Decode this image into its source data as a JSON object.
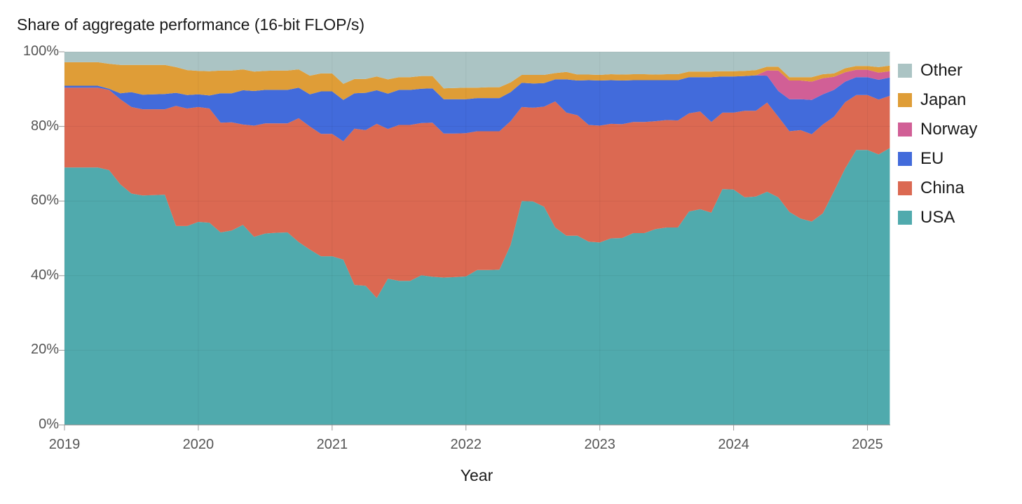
{
  "chart_data": {
    "type": "area",
    "stacked": true,
    "title": "Share of aggregate performance (16-bit FLOP/s)",
    "xlabel": "Year",
    "ylabel": "",
    "x_start": "2019-01",
    "x_frequency": "monthly",
    "xlim": [
      2019,
      2025.17
    ],
    "ylim": [
      0,
      100
    ],
    "y_ticks": [
      "0%",
      "20%",
      "40%",
      "60%",
      "80%",
      "100%"
    ],
    "x_ticks": [
      "2019",
      "2020",
      "2021",
      "2022",
      "2023",
      "2024",
      "2025"
    ],
    "grid": true,
    "legend_position": "right",
    "series": [
      {
        "name": "USA",
        "color": "#50aaad",
        "values": [
          69,
          69,
          69,
          69,
          68.3,
          64.5,
          62,
          61.5,
          61.6,
          61.7,
          53.3,
          53.3,
          54.4,
          54.2,
          51.6,
          52.1,
          53.6,
          50.4,
          51.3,
          51.5,
          51.6,
          49,
          47,
          45.2,
          45.2,
          44.3,
          37.5,
          37.3,
          34,
          39.2,
          38.6,
          38.6,
          40.1,
          39.7,
          39.5,
          39.6,
          39.8,
          41.5,
          41.5,
          41.6,
          48.2,
          60,
          59.9,
          58.5,
          52.9,
          50.7,
          50.7,
          49.1,
          48.9,
          50,
          50.1,
          51.4,
          51.4,
          52.5,
          52.9,
          52.9,
          57.2,
          57.8,
          56.9,
          63.2,
          63.1,
          61,
          61.2,
          62.5,
          61,
          57.1,
          55.3,
          54.5,
          56.7,
          62.6,
          68.7,
          73.7,
          73.7,
          72.5,
          74.2
        ]
      },
      {
        "name": "China",
        "color": "#db6952",
        "values": [
          21.4,
          21.4,
          21.4,
          21.4,
          21.5,
          22.8,
          23.2,
          23.1,
          23,
          22.9,
          32.2,
          31.5,
          30.8,
          30.6,
          29.4,
          29,
          26.9,
          29.8,
          29.5,
          29.3,
          29.2,
          33.2,
          33,
          32.8,
          32.8,
          31.7,
          41.9,
          41.7,
          46.7,
          40.1,
          41.8,
          41.8,
          40.8,
          41.3,
          38.6,
          38.5,
          38.4,
          37.2,
          37.2,
          37.1,
          33.2,
          25.2,
          25.1,
          26.8,
          33.8,
          33,
          32.3,
          31.3,
          31.3,
          30.7,
          30.5,
          29.8,
          29.8,
          28.9,
          28.8,
          28.7,
          26.3,
          26.2,
          24.3,
          20.5,
          20.6,
          23.2,
          23,
          23.9,
          21.6,
          21.6,
          23.7,
          23.4,
          23.8,
          20,
          17.8,
          14.7,
          14.7,
          14.7,
          14
        ]
      },
      {
        "name": "EU",
        "color": "#426bdb",
        "values": [
          0.5,
          0.5,
          0.5,
          0.5,
          0.3,
          1.6,
          4,
          3.9,
          4,
          4.1,
          3.5,
          3.6,
          3.4,
          3.5,
          7.9,
          7.8,
          9.2,
          9.3,
          9,
          9,
          9,
          8.2,
          8.6,
          11.4,
          11.4,
          11.1,
          9.5,
          10,
          9,
          9.5,
          9.4,
          9.4,
          9.2,
          9.2,
          9.2,
          9.2,
          9.1,
          8.9,
          8.9,
          8.9,
          7.8,
          6.5,
          6.5,
          6.3,
          5.9,
          8.9,
          9.3,
          12,
          12.1,
          11.7,
          11.7,
          11.2,
          11.2,
          11,
          10.7,
          10.8,
          9.7,
          9.2,
          12,
          9.7,
          9.7,
          9.3,
          9.5,
          7.2,
          6.9,
          8.6,
          8.3,
          9.2,
          8.1,
          7.2,
          5.5,
          4.8,
          4.8,
          5.3,
          4.9
        ]
      },
      {
        "name": "Norway",
        "color": "#d15f96",
        "values": [
          0,
          0,
          0,
          0,
          0,
          0,
          0,
          0,
          0,
          0,
          0,
          0,
          0,
          0,
          0,
          0,
          0,
          0,
          0,
          0,
          0,
          0,
          0,
          0,
          0,
          0,
          0,
          0,
          0,
          0,
          0,
          0,
          0,
          0,
          0,
          0,
          0,
          0,
          0,
          0,
          0,
          0,
          0,
          0,
          0,
          0,
          0,
          0,
          0,
          0,
          0,
          0,
          0,
          0,
          0,
          0,
          0,
          0,
          0,
          0,
          0,
          0,
          0,
          1.4,
          5.5,
          5,
          5,
          4.9,
          4.3,
          3.5,
          2.5,
          2,
          2,
          1.9,
          1.7
        ]
      },
      {
        "name": "Japan",
        "color": "#df9d37",
        "values": [
          6.3,
          6.3,
          6.3,
          6.3,
          6.7,
          7.6,
          7.3,
          8,
          7.9,
          7.8,
          6.9,
          6.7,
          6.3,
          6.5,
          6.1,
          6.1,
          5.6,
          5.2,
          5.1,
          5.2,
          5.2,
          4.9,
          5,
          4.8,
          4.8,
          4.3,
          3.8,
          3.7,
          3.7,
          3.8,
          3.4,
          3.4,
          3.4,
          3.3,
          2.9,
          3,
          3.1,
          2.8,
          2.9,
          2.9,
          2.6,
          2.1,
          2.3,
          2.2,
          1.7,
          2,
          1.6,
          1.5,
          1.5,
          1.6,
          1.6,
          1.6,
          1.6,
          1.5,
          1.6,
          1.6,
          1.5,
          1.5,
          1.5,
          1.4,
          1.4,
          1.4,
          1.4,
          1,
          1,
          0.9,
          0.9,
          1.2,
          1.1,
          0.9,
          1.1,
          1,
          1,
          1.5,
          1.5
        ]
      },
      {
        "name": "Other",
        "color": "#abc4c4",
        "values": [
          2.8,
          2.8,
          2.8,
          2.8,
          3.2,
          3.5,
          3.5,
          3.5,
          3.5,
          3.5,
          4.1,
          4.9,
          5.1,
          5.2,
          5,
          5,
          4.7,
          5.3,
          5.1,
          5,
          5,
          4.7,
          6.4,
          5.8,
          5.8,
          8.6,
          7.3,
          7.3,
          6.6,
          7.4,
          6.8,
          6.8,
          6.5,
          6.5,
          9.8,
          9.7,
          9.6,
          9.6,
          9.5,
          9.5,
          8.2,
          6.2,
          6.2,
          6.2,
          5.7,
          5.4,
          6.1,
          6.1,
          6.2,
          6,
          6.1,
          6,
          6,
          6.1,
          6,
          6,
          5.3,
          5.3,
          5.3,
          5.2,
          5.2,
          5.1,
          5.1,
          4,
          4,
          6.8,
          6.8,
          6.8,
          6,
          5.8,
          4.4,
          3.8,
          3.8,
          4.1,
          3.7
        ]
      }
    ],
    "legend": [
      "Other",
      "Japan",
      "Norway",
      "EU",
      "China",
      "USA"
    ]
  }
}
